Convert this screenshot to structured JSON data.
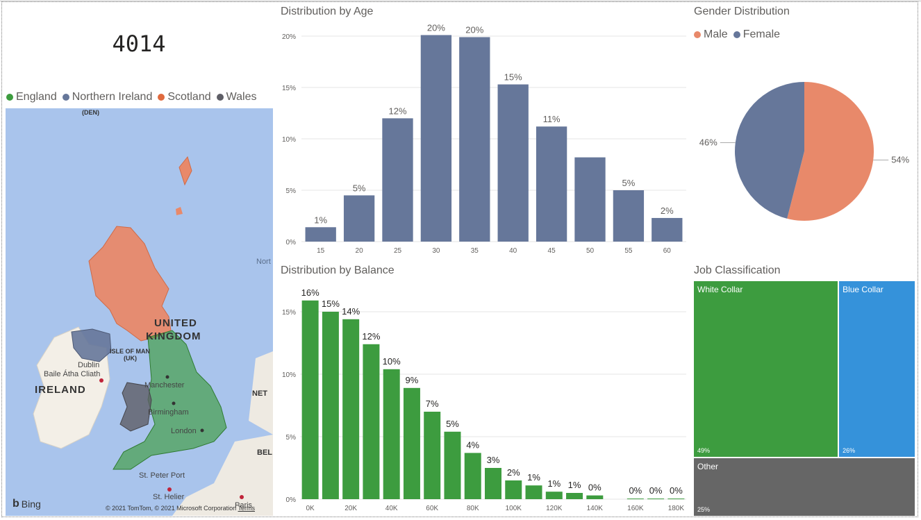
{
  "kpi": {
    "value": "4014"
  },
  "map": {
    "legend": [
      {
        "label": "England",
        "color": "#3d9c3f"
      },
      {
        "label": "Northern Ireland",
        "color": "#66779a"
      },
      {
        "label": "Scotland",
        "color": "#e06a3e"
      },
      {
        "label": "Wales",
        "color": "#5e5e66"
      }
    ],
    "labels": {
      "den": "(DEN)",
      "uk_line1": "UNITED",
      "uk_line2": "KINGDOM",
      "isle_line1": "ISLE OF MAN",
      "isle_line2": "(UK)",
      "dublin": "Dublin",
      "baile": "Baile Átha Cliath",
      "ireland": "IRELAND",
      "manchester": "Manchester",
      "birmingham": "Birmingham",
      "london": "London",
      "north": "Nort",
      "net": "NET",
      "bel": "BEL",
      "st_peter": "St. Peter Port",
      "st_helier": "St. Helier",
      "paris": "Paris"
    },
    "bing": "Bing",
    "copyright": "© 2021 TomTom, © 2021 Microsoft Corporation",
    "terms": "Terms"
  },
  "age_chart": {
    "title": "Distribution by Age",
    "chart_data": {
      "type": "bar",
      "categories": [
        "15",
        "20",
        "25",
        "30",
        "35",
        "40",
        "45",
        "50",
        "55",
        "60"
      ],
      "values": [
        1.4,
        4.5,
        12.0,
        20.1,
        19.9,
        15.3,
        11.2,
        8.2,
        5.0,
        2.3
      ],
      "data_labels": [
        "1%",
        "5%",
        "12%",
        "20%",
        "20%",
        "15%",
        "11%",
        "",
        "5%",
        "2%"
      ],
      "yticks": [
        0,
        5,
        10,
        15,
        20
      ],
      "ytick_labels": [
        "0%",
        "5%",
        "10%",
        "15%",
        "20%"
      ],
      "ylim": [
        0,
        20
      ],
      "color": "#66779a",
      "grid": true
    }
  },
  "balance_chart": {
    "title": "Distribution by Balance",
    "chart_data": {
      "type": "bar",
      "x": [
        0,
        10,
        20,
        30,
        40,
        50,
        60,
        70,
        80,
        90,
        100,
        110,
        120,
        130,
        140,
        160,
        170,
        180
      ],
      "values": [
        15.9,
        15.0,
        14.4,
        12.4,
        10.4,
        8.9,
        7.0,
        5.4,
        3.7,
        2.5,
        1.5,
        1.1,
        0.6,
        0.5,
        0.3,
        0.05,
        0.05,
        0.05
      ],
      "data_labels": [
        "16%",
        "15%",
        "14%",
        "12%",
        "10%",
        "9%",
        "7%",
        "5%",
        "4%",
        "3%",
        "2%",
        "1%",
        "1%",
        "1%",
        "0%",
        "0%",
        "0%",
        "0%"
      ],
      "xticks": [
        0,
        20,
        40,
        60,
        80,
        100,
        120,
        140,
        160,
        180
      ],
      "xtick_labels": [
        "0K",
        "20K",
        "40K",
        "60K",
        "80K",
        "100K",
        "120K",
        "140K",
        "160K",
        "180K"
      ],
      "yticks": [
        0,
        5,
        10,
        15
      ],
      "ytick_labels": [
        "0%",
        "5%",
        "10%",
        "15%"
      ],
      "xlim": [
        -5,
        185
      ],
      "ylim": [
        0,
        16
      ],
      "color": "#3d9c3f",
      "grid": true
    }
  },
  "gender_chart": {
    "title": "Gender Distribution",
    "chart_data": {
      "type": "pie",
      "slices": [
        {
          "label": "Male",
          "value": 54,
          "display": "54%",
          "color": "#e8896a"
        },
        {
          "label": "Female",
          "value": 46,
          "display": "46%",
          "color": "#66779a"
        }
      ],
      "legend": "top-left"
    }
  },
  "job_chart": {
    "title": "Job Classification",
    "chart_data": {
      "type": "treemap",
      "items": [
        {
          "label": "White Collar",
          "value": 49,
          "display": "49%",
          "color": "#3d9c3f"
        },
        {
          "label": "Blue Collar",
          "value": 26,
          "display": "26%",
          "color": "#3592da"
        },
        {
          "label": "Other",
          "value": 25,
          "display": "25%",
          "color": "#666666"
        }
      ]
    }
  }
}
